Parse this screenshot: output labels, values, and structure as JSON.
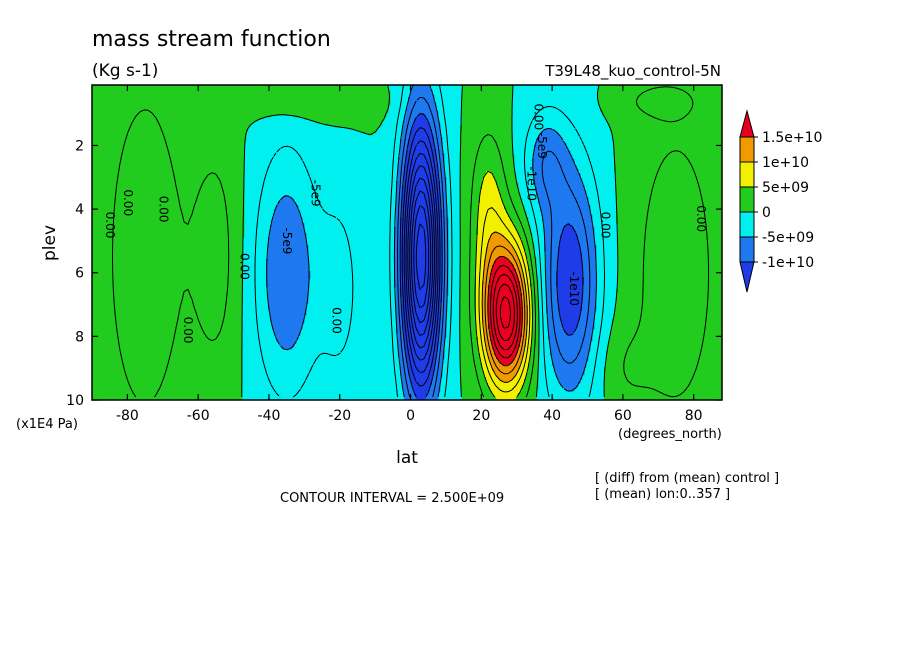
{
  "header": {
    "title": "mass stream function",
    "units": "(Kg s-1)",
    "run_name": "T39L48_kuo_control-5N"
  },
  "footer": {
    "contour_interval": "CONTOUR INTERVAL = 2.500E+09",
    "note_line1": "[ (diff) from (mean) control ]",
    "note_line2": "[ (mean) lon:0..357 ]"
  },
  "chart_data": {
    "type": "heatmap",
    "title": "mass stream function",
    "subtitle": "(Kg s-1)",
    "xlabel": "lat",
    "xunits": "(degrees_north)",
    "ylabel": "plev",
    "yunits": "(x1E4 Pa)",
    "xlim": [
      -90,
      88
    ],
    "ylim": [
      10,
      0.1
    ],
    "x_ticks": [
      -80,
      -60,
      -40,
      -20,
      0,
      20,
      40,
      60,
      80
    ],
    "x_tick_labels": [
      "-80",
      "-60",
      "-40",
      "-20",
      "0",
      "20",
      "40",
      "60",
      "80"
    ],
    "y_ticks": [
      2,
      4,
      6,
      8,
      10
    ],
    "y_tick_labels": [
      "2",
      "4",
      "6",
      "8",
      "10"
    ],
    "contour_interval": 2500000000,
    "colorbar": {
      "labels": [
        "1.5e+10",
        "1e+10",
        "5e+09",
        "0",
        "-5e+09",
        "-1e+10"
      ],
      "levels": [
        15000000000,
        10000000000,
        5000000000,
        0,
        -5000000000,
        -10000000000
      ],
      "colors": [
        "#e8001e",
        "#f09a00",
        "#f0f000",
        "#22cc1e",
        "#00f0f0",
        "#1e78f0",
        "#1e3ce8"
      ]
    },
    "features": [
      {
        "type": "min",
        "lat": 3,
        "plev": 5.5,
        "level_index": 6
      },
      {
        "type": "max",
        "lat": 27,
        "plev": 7.5,
        "level_index": 0
      },
      {
        "type": "min",
        "lat": 45,
        "plev": 6.5,
        "level_index": 5
      },
      {
        "type": "min",
        "lat": -38,
        "plev": 6,
        "level_index": 5
      }
    ],
    "contour_labels": [
      {
        "text": "0.00",
        "lat": -86,
        "plev": 4.5
      },
      {
        "text": "0.00",
        "lat": -81,
        "plev": 3.8
      },
      {
        "text": "0.00",
        "lat": -71,
        "plev": 4
      },
      {
        "text": "0.00",
        "lat": -64,
        "plev": 7.8
      },
      {
        "text": "0.00",
        "lat": -48,
        "plev": 5.8
      },
      {
        "text": "-5e9",
        "lat": -36,
        "plev": 5
      },
      {
        "text": "-5e9",
        "lat": -28,
        "plev": 3.5
      },
      {
        "text": "0.00",
        "lat": -22,
        "plev": 7.5
      },
      {
        "text": "0.00",
        "lat": 35,
        "plev": 1.1
      },
      {
        "text": "-5e9",
        "lat": 36,
        "plev": 2
      },
      {
        "text": "-1e10",
        "lat": 33,
        "plev": 3.2
      },
      {
        "text": "-1e10",
        "lat": 45,
        "plev": 6.5
      },
      {
        "text": "0.00",
        "lat": 54,
        "plev": 4.5
      },
      {
        "text": "0.00",
        "lat": 81,
        "plev": 4.3
      }
    ]
  }
}
